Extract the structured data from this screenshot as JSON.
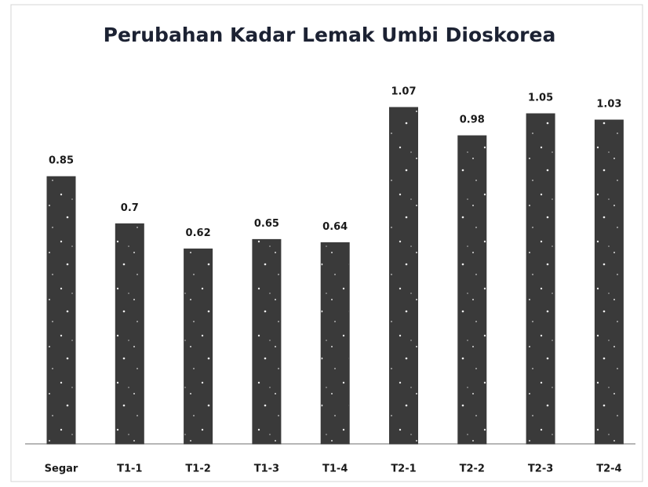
{
  "chart_data": {
    "type": "bar",
    "title": "Perubahan Kadar Lemak Umbi Dioskorea",
    "categories": [
      "Segar",
      "T1-1",
      "T1-2",
      "T1-3",
      "T1-4",
      "T2-1",
      "T2-2",
      "T2-3",
      "T2-4"
    ],
    "values": [
      0.85,
      0.7,
      0.62,
      0.65,
      0.64,
      1.07,
      0.98,
      1.05,
      1.03
    ],
    "color": "#3a3a3a"
  }
}
